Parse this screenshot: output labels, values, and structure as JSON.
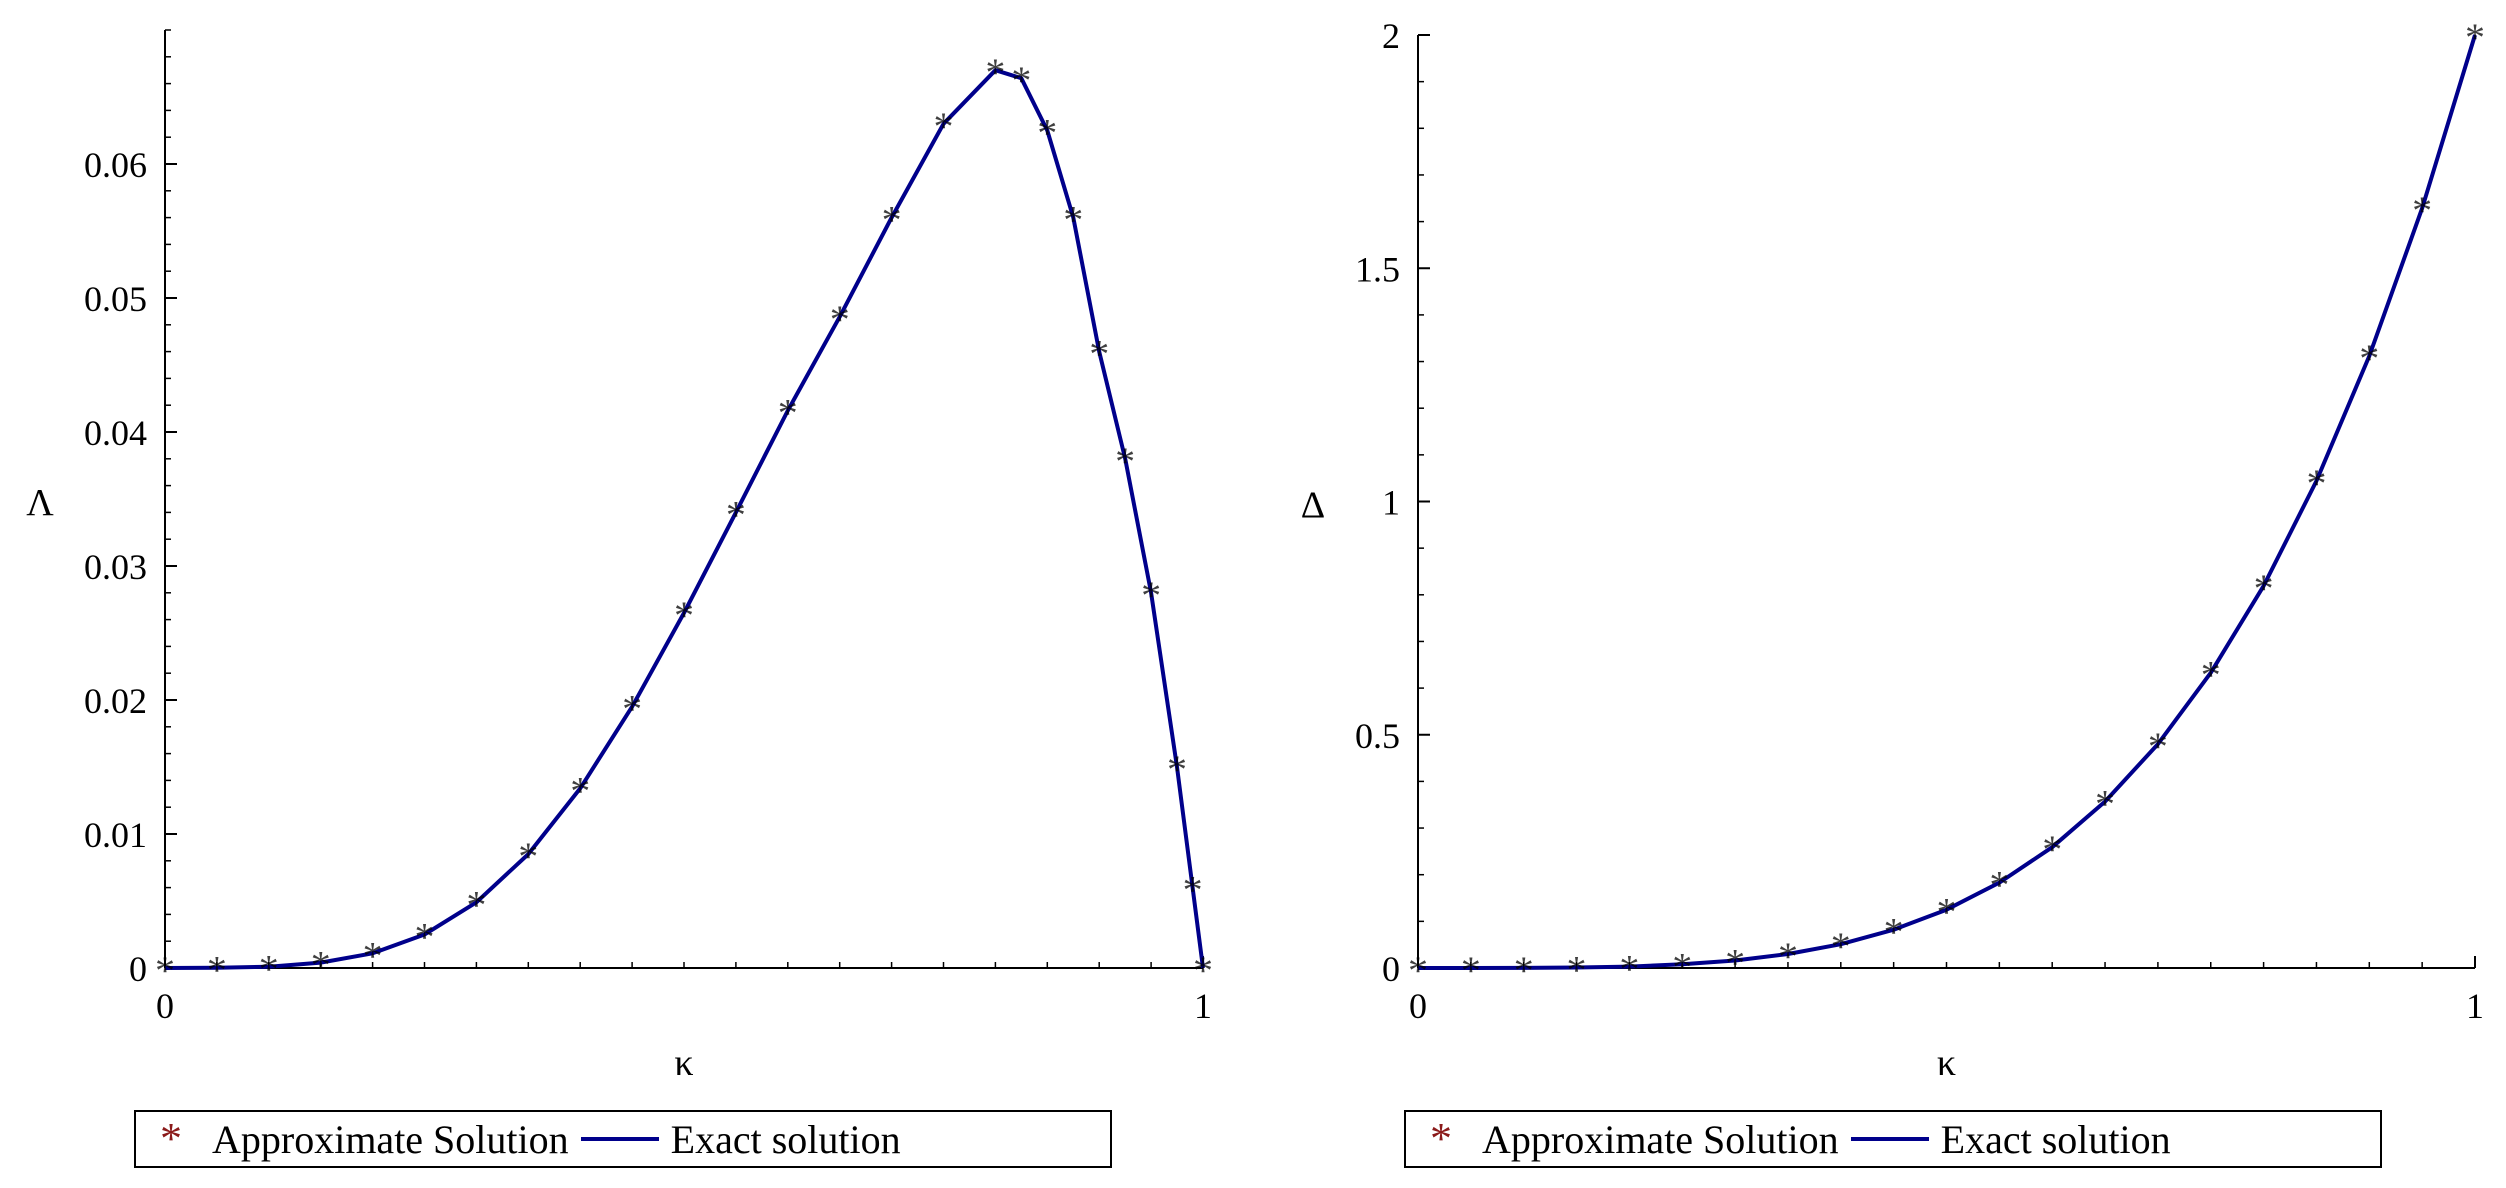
{
  "chart_data": [
    {
      "type": "line",
      "title": "",
      "xlabel": "κ",
      "ylabel": "Λ",
      "xlim": [
        0,
        1
      ],
      "ylim": [
        0,
        0.07
      ],
      "xticks": [
        "0",
        "1"
      ],
      "yticks": [
        "0",
        "0.01",
        "0.02",
        "0.03",
        "0.04",
        "0.05",
        "0.06"
      ],
      "ytick_values": [
        0,
        0.01,
        0.02,
        0.03,
        0.04,
        0.05,
        0.06
      ],
      "grid": false,
      "legend_position": "bottom",
      "series": [
        {
          "name": "Approximate Solution",
          "style": "star-markers",
          "color": "#8b1a1a",
          "x": [
            0,
            0.05,
            0.1,
            0.15,
            0.2,
            0.25,
            0.3,
            0.35,
            0.4,
            0.45,
            0.5,
            0.55,
            0.6,
            0.65,
            0.7,
            0.75,
            0.8,
            0.825,
            0.85,
            0.875,
            0.9,
            0.925,
            0.95,
            0.975,
            0.99,
            1.0
          ],
          "y": [
            0,
            2e-05,
            0.0001,
            0.0004,
            0.0011,
            0.0025,
            0.0049,
            0.0085,
            0.0134,
            0.0195,
            0.0265,
            0.034,
            0.0416,
            0.0486,
            0.056,
            0.063,
            0.067,
            0.0664,
            0.0625,
            0.056,
            0.046,
            0.038,
            0.028,
            0.015,
            0.006,
            0
          ]
        },
        {
          "name": "Exact solution",
          "style": "line",
          "color": "#00008b",
          "x": [
            0,
            0.05,
            0.1,
            0.15,
            0.2,
            0.25,
            0.3,
            0.35,
            0.4,
            0.45,
            0.5,
            0.55,
            0.6,
            0.65,
            0.7,
            0.75,
            0.8,
            0.825,
            0.85,
            0.875,
            0.9,
            0.925,
            0.95,
            0.975,
            0.99,
            1.0
          ],
          "y": [
            0,
            2e-05,
            0.0001,
            0.0004,
            0.0011,
            0.0025,
            0.0049,
            0.0085,
            0.0134,
            0.0195,
            0.0265,
            0.034,
            0.0416,
            0.0486,
            0.056,
            0.063,
            0.067,
            0.0664,
            0.0625,
            0.056,
            0.046,
            0.038,
            0.028,
            0.015,
            0.006,
            0
          ]
        }
      ]
    },
    {
      "type": "line",
      "title": "",
      "xlabel": "κ",
      "ylabel": "Δ",
      "xlim": [
        0,
        1
      ],
      "ylim": [
        0,
        2
      ],
      "xticks": [
        "0",
        "1"
      ],
      "yticks": [
        "0",
        "0.5",
        "1",
        "1.5",
        "2"
      ],
      "ytick_values": [
        0,
        0.5,
        1,
        1.5,
        2
      ],
      "grid": false,
      "legend_position": "bottom",
      "series": [
        {
          "name": "Approximate Solution",
          "style": "star-markers",
          "color": "#8b1a1a",
          "x": [
            0,
            0.05,
            0.1,
            0.15,
            0.2,
            0.25,
            0.3,
            0.35,
            0.4,
            0.45,
            0.5,
            0.55,
            0.6,
            0.65,
            0.7,
            0.75,
            0.8,
            0.85,
            0.9,
            0.95,
            1.0
          ],
          "y": [
            0,
            1e-05,
            0.0002,
            0.001,
            0.003,
            0.008,
            0.016,
            0.03,
            0.051,
            0.082,
            0.125,
            0.183,
            0.259,
            0.357,
            0.48,
            0.633,
            0.819,
            1.044,
            1.312,
            1.629,
            2.0
          ]
        },
        {
          "name": "Exact solution",
          "style": "line",
          "color": "#00008b",
          "x": [
            0,
            0.05,
            0.1,
            0.15,
            0.2,
            0.25,
            0.3,
            0.35,
            0.4,
            0.45,
            0.5,
            0.55,
            0.6,
            0.65,
            0.7,
            0.75,
            0.8,
            0.85,
            0.9,
            0.95,
            1.0
          ],
          "y": [
            0,
            1e-05,
            0.0002,
            0.001,
            0.003,
            0.008,
            0.016,
            0.03,
            0.051,
            0.082,
            0.125,
            0.183,
            0.259,
            0.357,
            0.48,
            0.633,
            0.819,
            1.044,
            1.312,
            1.629,
            2.0
          ]
        }
      ]
    }
  ],
  "legends": [
    {
      "approx_label": "Approximate Solution",
      "exact_label": "Exact solution"
    },
    {
      "approx_label": "Approximate Solution",
      "exact_label": "Exact solution"
    }
  ]
}
